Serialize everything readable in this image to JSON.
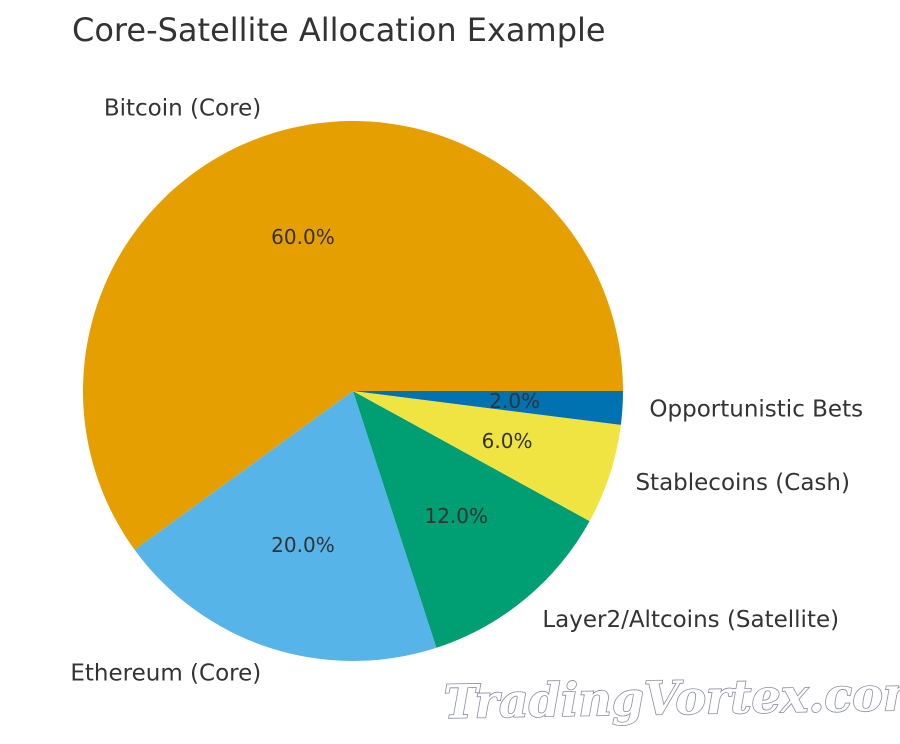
{
  "chart_data": {
    "type": "pie",
    "title": "Core-Satellite Allocation Example",
    "slices": [
      {
        "label": "Bitcoin (Core)",
        "value": 60.0,
        "pct_label": "60.0%",
        "color": "#E69F00"
      },
      {
        "label": "Ethereum (Core)",
        "value": 20.0,
        "pct_label": "20.0%",
        "color": "#56B4E9"
      },
      {
        "label": "Layer2/Altcoins (Satellite)",
        "value": 12.0,
        "pct_label": "12.0%",
        "color": "#009E73"
      },
      {
        "label": "Stablecoins (Cash)",
        "value": 6.0,
        "pct_label": "6.0%",
        "color": "#F0E442"
      },
      {
        "label": "Opportunistic Bets",
        "value": 2.0,
        "pct_label": "2.0%",
        "color": "#0072B2"
      }
    ],
    "start_angle_deg": 0,
    "direction": "counterclockwise"
  },
  "watermark": "TradingVortex.com"
}
